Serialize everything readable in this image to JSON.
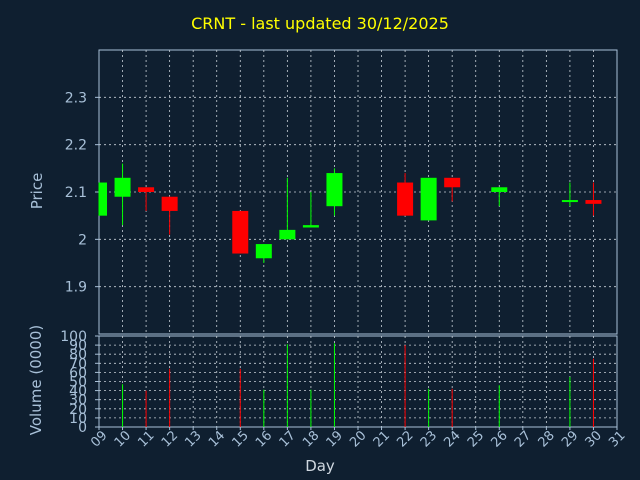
{
  "chart_data": [
    {
      "type": "candlestick",
      "title": "CRNT - last updated 30/12/2025",
      "ylabel": "Price",
      "ylim": [
        1.8,
        2.4
      ],
      "yticks": [
        1.9,
        2,
        2.1,
        2.2,
        2.3
      ],
      "ytick_labels": [
        "1.9",
        "2",
        "2.1",
        "2.2",
        "2.3"
      ],
      "grid": true,
      "categories": [
        "09",
        "10",
        "11",
        "12",
        "13",
        "14",
        "15",
        "16",
        "17",
        "18",
        "19",
        "20",
        "21",
        "22",
        "23",
        "24",
        "25",
        "26",
        "27",
        "28",
        "29",
        "30",
        "31"
      ],
      "candles": [
        {
          "day": "09",
          "open": 2.05,
          "close": 2.12,
          "high": 2.12,
          "low": 2.05
        },
        {
          "day": "10",
          "open": 2.09,
          "close": 2.13,
          "high": 2.16,
          "low": 2.03
        },
        {
          "day": "11",
          "open": 2.11,
          "close": 2.1,
          "high": 2.11,
          "low": 2.06
        },
        {
          "day": "12",
          "open": 2.09,
          "close": 2.06,
          "high": 2.09,
          "low": 2.01
        },
        {
          "day": "15",
          "open": 2.06,
          "close": 1.97,
          "high": 2.06,
          "low": 1.97
        },
        {
          "day": "16",
          "open": 1.96,
          "close": 1.99,
          "high": 1.99,
          "low": 1.95
        },
        {
          "day": "17",
          "open": 2.0,
          "close": 2.02,
          "high": 2.13,
          "low": 2.0
        },
        {
          "day": "18",
          "open": 2.025,
          "close": 2.03,
          "high": 2.1,
          "low": 2.025
        },
        {
          "day": "19",
          "open": 2.07,
          "close": 2.14,
          "high": 2.15,
          "low": 2.05
        },
        {
          "day": "22",
          "open": 2.12,
          "close": 2.05,
          "high": 2.14,
          "low": 2.05
        },
        {
          "day": "23",
          "open": 2.04,
          "close": 2.13,
          "high": 2.13,
          "low": 2.04
        },
        {
          "day": "24",
          "open": 2.13,
          "close": 2.11,
          "high": 2.13,
          "low": 2.08
        },
        {
          "day": "26",
          "open": 2.1,
          "close": 2.11,
          "high": 2.11,
          "low": 2.07
        },
        {
          "day": "29",
          "open": 2.08,
          "close": 2.083,
          "high": 2.12,
          "low": 2.07
        },
        {
          "day": "30",
          "open": 2.083,
          "close": 2.075,
          "high": 2.12,
          "low": 2.05
        }
      ]
    },
    {
      "type": "bar",
      "ylabel": "Volume (0000)",
      "xlabel": "Day",
      "ylim": [
        0,
        100
      ],
      "yticks": [
        0,
        10,
        20,
        30,
        40,
        50,
        60,
        70,
        80,
        90,
        100
      ],
      "ytick_labels": [
        "0",
        "10",
        "20",
        "30",
        "40",
        "50",
        "60",
        "70",
        "80",
        "90",
        "100"
      ],
      "grid": true,
      "categories": [
        "09",
        "10",
        "11",
        "12",
        "13",
        "14",
        "15",
        "16",
        "17",
        "18",
        "19",
        "20",
        "21",
        "22",
        "23",
        "24",
        "25",
        "26",
        "27",
        "28",
        "29",
        "30",
        "31"
      ],
      "volumes": [
        {
          "day": "10",
          "value": 47,
          "direction": "up"
        },
        {
          "day": "11",
          "value": 40,
          "direction": "down"
        },
        {
          "day": "12",
          "value": 64,
          "direction": "down"
        },
        {
          "day": "15",
          "value": 64,
          "direction": "down"
        },
        {
          "day": "16",
          "value": 41,
          "direction": "up"
        },
        {
          "day": "17",
          "value": 91,
          "direction": "up"
        },
        {
          "day": "18",
          "value": 41,
          "direction": "up"
        },
        {
          "day": "19",
          "value": 92,
          "direction": "up"
        },
        {
          "day": "22",
          "value": 90,
          "direction": "down"
        },
        {
          "day": "23",
          "value": 42,
          "direction": "up"
        },
        {
          "day": "24",
          "value": 42,
          "direction": "down"
        },
        {
          "day": "26",
          "value": 46,
          "direction": "up"
        },
        {
          "day": "29",
          "value": 55,
          "direction": "up"
        },
        {
          "day": "30",
          "value": 75,
          "direction": "down"
        }
      ]
    }
  ],
  "colors": {
    "background": "#0f1f30",
    "axis": "#a8c0d8",
    "grid": "#c8d0d8",
    "up": "#00ff00",
    "down": "#ff0000",
    "title": "#ffff00"
  }
}
